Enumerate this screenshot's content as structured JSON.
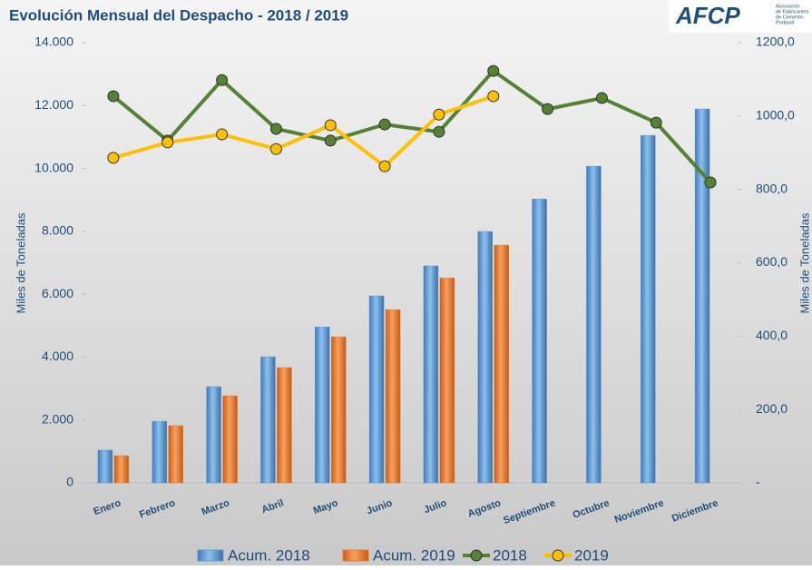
{
  "logo": {
    "text": "AFCP",
    "lines": [
      "Asociación",
      "de Fabricantes",
      "de Cemento",
      "Portland"
    ]
  },
  "chart_data": {
    "type": "bar",
    "title": "Evolución Mensual del Despacho - 2018 / 2019",
    "y_label": "Miles de Toneladas",
    "y2_label": "Miles de Toneladas",
    "categories": [
      "Enero",
      "Febrero",
      "Marzo",
      "Abril",
      "Mayo",
      "Junio",
      "Julio",
      "Agosto",
      "Septiembre",
      "Octubre",
      "Noviembre",
      "Diciembre"
    ],
    "series": [
      {
        "name": "Acum. 2018",
        "type": "bar",
        "color": "#5b9bd5",
        "values": [
          1040,
          1960,
          3060,
          4010,
          4960,
          5945,
          6900,
          7995,
          9030,
          10070,
          11050,
          11890
        ]
      },
      {
        "name": "Acum. 2019",
        "type": "bar",
        "color": "#ed7d31",
        "values": [
          865,
          1820,
          2770,
          3665,
          4645,
          5510,
          6520,
          7560,
          null,
          null,
          null,
          null
        ]
      },
      {
        "name": "2018",
        "type": "line",
        "axis": "y2",
        "color": "#548235",
        "values": [
          1054,
          933,
          1098,
          965,
          933,
          977,
          957,
          1123,
          1019,
          1049,
          982,
          819
        ]
      },
      {
        "name": "2019",
        "type": "line",
        "axis": "y2",
        "color": "#ffc000",
        "values": [
          886,
          928,
          950,
          910,
          975,
          863,
          1004,
          1054,
          null,
          null,
          null,
          null
        ]
      }
    ],
    "ylim": [
      0,
      14000
    ],
    "yticks": [
      0,
      {
        "value": 2000,
        "label": "2.000"
      },
      {
        "value": 4000,
        "label": "4.000"
      },
      {
        "value": 6000,
        "label": "6.000"
      },
      {
        "value": 8000,
        "label": "8.000"
      },
      {
        "value": 10000,
        "label": "10.000"
      },
      {
        "value": 12000,
        "label": "12.000"
      },
      {
        "value": 14000,
        "label": "14.000"
      }
    ],
    "y2lim": [
      0,
      1200
    ],
    "y2ticks": [
      {
        "value": 0,
        "label": "-"
      },
      {
        "value": 200,
        "label": "200,0"
      },
      {
        "value": 400,
        "label": "400,0"
      },
      {
        "value": 600,
        "label": "600,0"
      },
      {
        "value": 800,
        "label": "800,0"
      },
      {
        "value": 1000,
        "label": "1000,0"
      },
      {
        "value": 1200,
        "label": "1200,0"
      }
    ],
    "legend": "bottom"
  }
}
